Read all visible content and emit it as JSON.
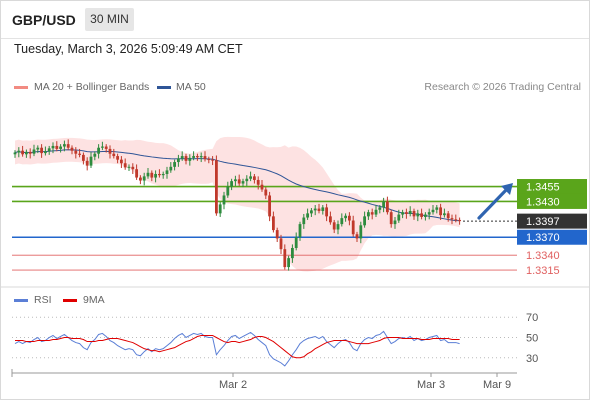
{
  "header": {
    "symbol": "GBP/USD",
    "timeframe": "30 MIN"
  },
  "timestamp": "Tuesday, March 3, 2026 5:09:49 AM CET",
  "legend_main": [
    {
      "label": "MA 20 + Bollinger Bands",
      "color": "#f28b82"
    },
    {
      "label": "MA 50",
      "color": "#2f5597"
    }
  ],
  "legend_rsi": [
    {
      "label": "RSI",
      "color": "#5b7fd6"
    },
    {
      "label": "9MA",
      "color": "#e00000"
    }
  ],
  "copyright": "Research © 2026 Trading Central",
  "colors": {
    "up": "#2e8b3e",
    "down": "#c0392b",
    "resistance": "#5aa51b",
    "support": "#2266cc",
    "support_weak": "#e06060",
    "current": "#333333",
    "arrow": "#2f64b0",
    "band": "#fcd8d8"
  },
  "chart_data": [
    {
      "type": "candlestick",
      "price_range": [
        1.3295,
        1.3605
      ],
      "current_price": {
        "value": 1.3397,
        "label": "1.3397"
      },
      "levels": [
        {
          "label": "1.3455",
          "value": 1.3455,
          "role": "resistance"
        },
        {
          "label": "1.3430",
          "value": 1.343,
          "role": "resistance"
        },
        {
          "label": "1.3370",
          "value": 1.337,
          "role": "support"
        },
        {
          "label": "1.3340",
          "value": 1.334,
          "role": "support_weak"
        },
        {
          "label": "1.3315",
          "value": 1.3315,
          "role": "support_weak"
        }
      ],
      "x_labels": [
        "Mar 2",
        "Mar 3",
        "Mar 9"
      ],
      "close": [
        1.3512,
        1.3515,
        1.3509,
        1.3513,
        1.351,
        1.3517,
        1.352,
        1.3511,
        1.3514,
        1.3519,
        1.3523,
        1.3518,
        1.3522,
        1.3526,
        1.352,
        1.3515,
        1.351,
        1.3508,
        1.3498,
        1.349,
        1.3505,
        1.351,
        1.352,
        1.3522,
        1.3518,
        1.351,
        1.3506,
        1.35,
        1.3494,
        1.3487,
        1.3488,
        1.3484,
        1.347,
        1.3465,
        1.3472,
        1.3478,
        1.347,
        1.3476,
        1.3474,
        1.3476,
        1.3482,
        1.3488,
        1.3496,
        1.3502,
        1.3506,
        1.3498,
        1.3503,
        1.3506,
        1.3504,
        1.3506,
        1.3501,
        1.35,
        1.3499,
        1.341,
        1.3425,
        1.344,
        1.3455,
        1.3464,
        1.3467,
        1.346,
        1.3464,
        1.3468,
        1.3472,
        1.3466,
        1.3458,
        1.345,
        1.344,
        1.3405,
        1.3382,
        1.3368,
        1.335,
        1.332,
        1.3335,
        1.3352,
        1.337,
        1.3392,
        1.3403,
        1.341,
        1.3415,
        1.3418,
        1.3414,
        1.342,
        1.3405,
        1.3395,
        1.3383,
        1.3392,
        1.3402,
        1.3406,
        1.3398,
        1.3375,
        1.3368,
        1.339,
        1.3405,
        1.3412,
        1.3408,
        1.3416,
        1.342,
        1.343,
        1.3412,
        1.3392,
        1.3398,
        1.3408,
        1.3412,
        1.3409,
        1.3414,
        1.3405,
        1.341,
        1.3404,
        1.3408,
        1.3412,
        1.3416,
        1.342,
        1.3407,
        1.341,
        1.3402,
        1.34,
        1.3399,
        1.3397
      ],
      "rsi_range": [
        15,
        85
      ],
      "rsi_ticks": [
        70,
        50,
        30
      ],
      "rsi": [
        44,
        46,
        44,
        46,
        45,
        48,
        50,
        46,
        47,
        50,
        52,
        49,
        51,
        53,
        50,
        47,
        45,
        44,
        40,
        38,
        45,
        48,
        53,
        54,
        51,
        47,
        45,
        42,
        40,
        38,
        39,
        38,
        33,
        32,
        36,
        39,
        36,
        39,
        38,
        39,
        42,
        45,
        49,
        52,
        54,
        50,
        52,
        54,
        53,
        54,
        51,
        50,
        50,
        33,
        38,
        42,
        47,
        51,
        52,
        49,
        51,
        53,
        55,
        52,
        48,
        45,
        42,
        33,
        29,
        27,
        25,
        22,
        27,
        33,
        38,
        44,
        47,
        49,
        50,
        51,
        49,
        51,
        46,
        43,
        40,
        44,
        47,
        48,
        45,
        39,
        37,
        44,
        48,
        50,
        49,
        52,
        53,
        56,
        50,
        44,
        46,
        49,
        50,
        49,
        51,
        47,
        49,
        47,
        48,
        50,
        51,
        52,
        47,
        48,
        45,
        45,
        45,
        44
      ],
      "rsi_ma9": [
        47,
        47,
        47,
        46,
        46,
        46,
        47,
        47,
        47,
        47,
        48,
        48,
        49,
        50,
        50,
        49,
        49,
        49,
        48,
        46,
        46,
        46,
        47,
        47,
        48,
        49,
        49,
        49,
        48,
        47,
        46,
        45,
        43,
        41,
        39,
        38,
        37,
        37,
        36,
        37,
        38,
        39,
        40,
        42,
        44,
        46,
        47,
        49,
        51,
        52,
        52,
        52,
        52,
        50,
        48,
        46,
        45,
        46,
        46,
        45,
        46,
        47,
        48,
        50,
        51,
        51,
        50,
        48,
        46,
        43,
        40,
        37,
        34,
        31,
        30,
        30,
        31,
        34,
        36,
        39,
        41,
        43,
        45,
        46,
        47,
        47,
        47,
        47,
        46,
        45,
        44,
        44,
        44,
        44,
        45,
        46,
        47,
        49,
        50,
        50,
        50,
        50,
        49,
        49,
        49,
        49,
        49,
        48,
        48,
        48,
        49,
        49,
        49,
        49,
        49,
        48,
        48,
        48
      ]
    }
  ]
}
